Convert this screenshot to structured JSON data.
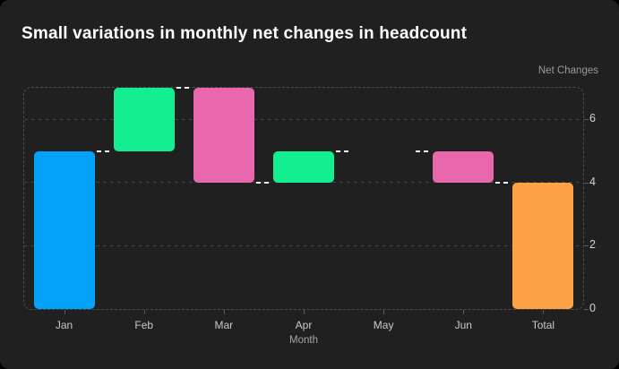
{
  "header": {
    "title": "Small variations in monthly net changes in headcount"
  },
  "chart_data": {
    "type": "waterfall",
    "title": "Small variations in monthly net changes in headcount",
    "xlabel": "Month",
    "ylabel": "Net Changes",
    "categories": [
      "Jan",
      "Feb",
      "Mar",
      "Apr",
      "May",
      "Jun",
      "Total"
    ],
    "series": [
      {
        "label": "Jan",
        "change": 5,
        "start": 0,
        "end": 5,
        "role": "first"
      },
      {
        "label": "Feb",
        "change": 2,
        "start": 5,
        "end": 7,
        "role": "increase"
      },
      {
        "label": "Mar",
        "change": -3,
        "start": 7,
        "end": 4,
        "role": "decrease"
      },
      {
        "label": "Apr",
        "change": 1,
        "start": 4,
        "end": 5,
        "role": "increase"
      },
      {
        "label": "May",
        "change": 0,
        "start": 5,
        "end": 5,
        "role": "none"
      },
      {
        "label": "Jun",
        "change": -1,
        "start": 5,
        "end": 4,
        "role": "decrease"
      },
      {
        "label": "Total",
        "change": 4,
        "start": 0,
        "end": 4,
        "role": "total"
      }
    ],
    "ylim": [
      0,
      7
    ],
    "yticks": [
      0,
      2,
      4,
      6
    ],
    "grid": "horizontal dashed",
    "legend": "none",
    "connector_style": "white dashed segments between bars",
    "colors": {
      "first": "#03a1f7",
      "increase": "#12ee90",
      "decrease": "#e867ad",
      "total": "#fda346",
      "connector": "#f2f2f2",
      "background": "#202020",
      "gridline": "#454545",
      "title_text": "#ffffff",
      "axis_text": "#c9c9c9"
    }
  }
}
